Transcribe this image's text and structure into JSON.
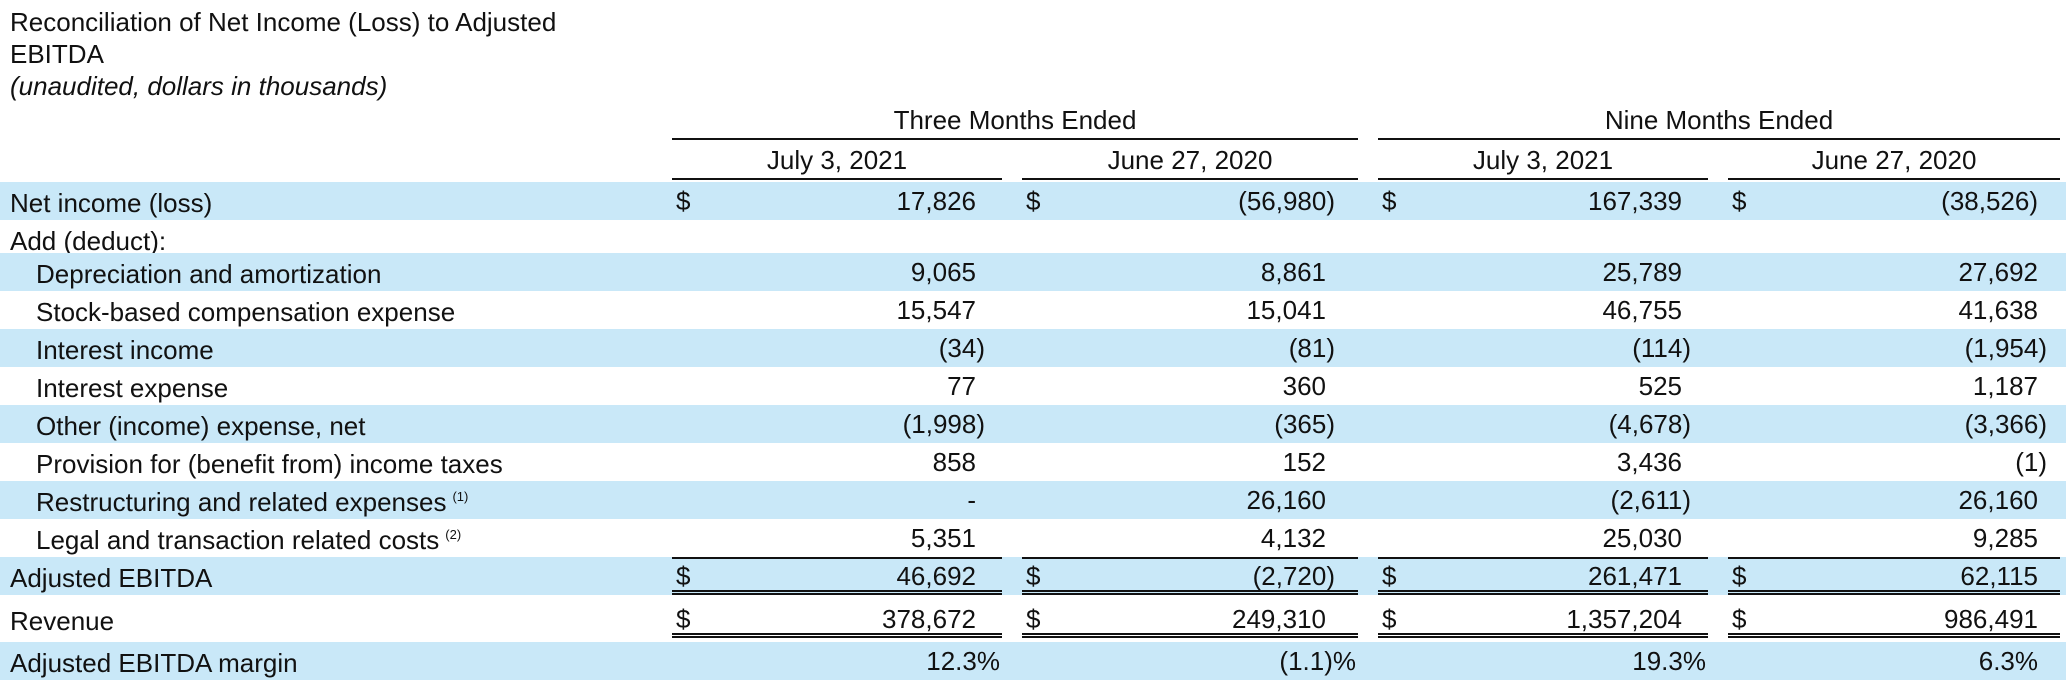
{
  "title": "Reconciliation of Net Income (Loss) to Adjusted EBITDA",
  "subtitle": "(unaudited, dollars in thousands)",
  "groups": [
    "Three Months Ended",
    "Nine Months Ended"
  ],
  "columns": [
    "July 3, 2021",
    "June 27, 2020",
    "July 3, 2021",
    "June 27, 2020"
  ],
  "currency_symbol": "$",
  "rows": {
    "net_income": {
      "label": "Net income (loss)",
      "values": [
        "17,826",
        "(56,980)",
        "167,339",
        "(38,526)"
      ]
    },
    "add_deduct": {
      "label": "Add (deduct):"
    },
    "dep_amort": {
      "label": "Depreciation and amortization",
      "values": [
        "9,065",
        "8,861",
        "25,789",
        "27,692"
      ]
    },
    "stock_comp": {
      "label": "Stock-based compensation expense",
      "values": [
        "15,547",
        "15,041",
        "46,755",
        "41,638"
      ]
    },
    "interest_income": {
      "label": "Interest income",
      "values": [
        "(34)",
        "(81)",
        "(114)",
        "(1,954)"
      ]
    },
    "interest_expense": {
      "label": "Interest expense",
      "values": [
        "77",
        "360",
        "525",
        "1,187"
      ]
    },
    "other_expense": {
      "label": "Other (income) expense, net",
      "values": [
        "(1,998)",
        "(365)",
        "(4,678)",
        "(3,366)"
      ]
    },
    "taxes": {
      "label": "Provision for (benefit from) income taxes",
      "values": [
        "858",
        "152",
        "3,436",
        "(1)"
      ]
    },
    "restructuring": {
      "label": "Restructuring and related expenses",
      "footnote": "(1)",
      "values": [
        "-",
        "26,160",
        "(2,611)",
        "26,160"
      ]
    },
    "legal": {
      "label": "Legal and transaction related costs",
      "footnote": "(2)",
      "values": [
        "5,351",
        "4,132",
        "25,030",
        "9,285"
      ]
    },
    "adj_ebitda": {
      "label": "Adjusted EBITDA",
      "values": [
        "46,692",
        "(2,720)",
        "261,471",
        "62,115"
      ]
    },
    "revenue": {
      "label": "Revenue",
      "values": [
        "378,672",
        "249,310",
        "1,357,204",
        "986,491"
      ]
    },
    "margin": {
      "label": "Adjusted EBITDA margin",
      "values": [
        "12.3%",
        "(1.1)%",
        "19.3%",
        "6.3%"
      ]
    }
  }
}
